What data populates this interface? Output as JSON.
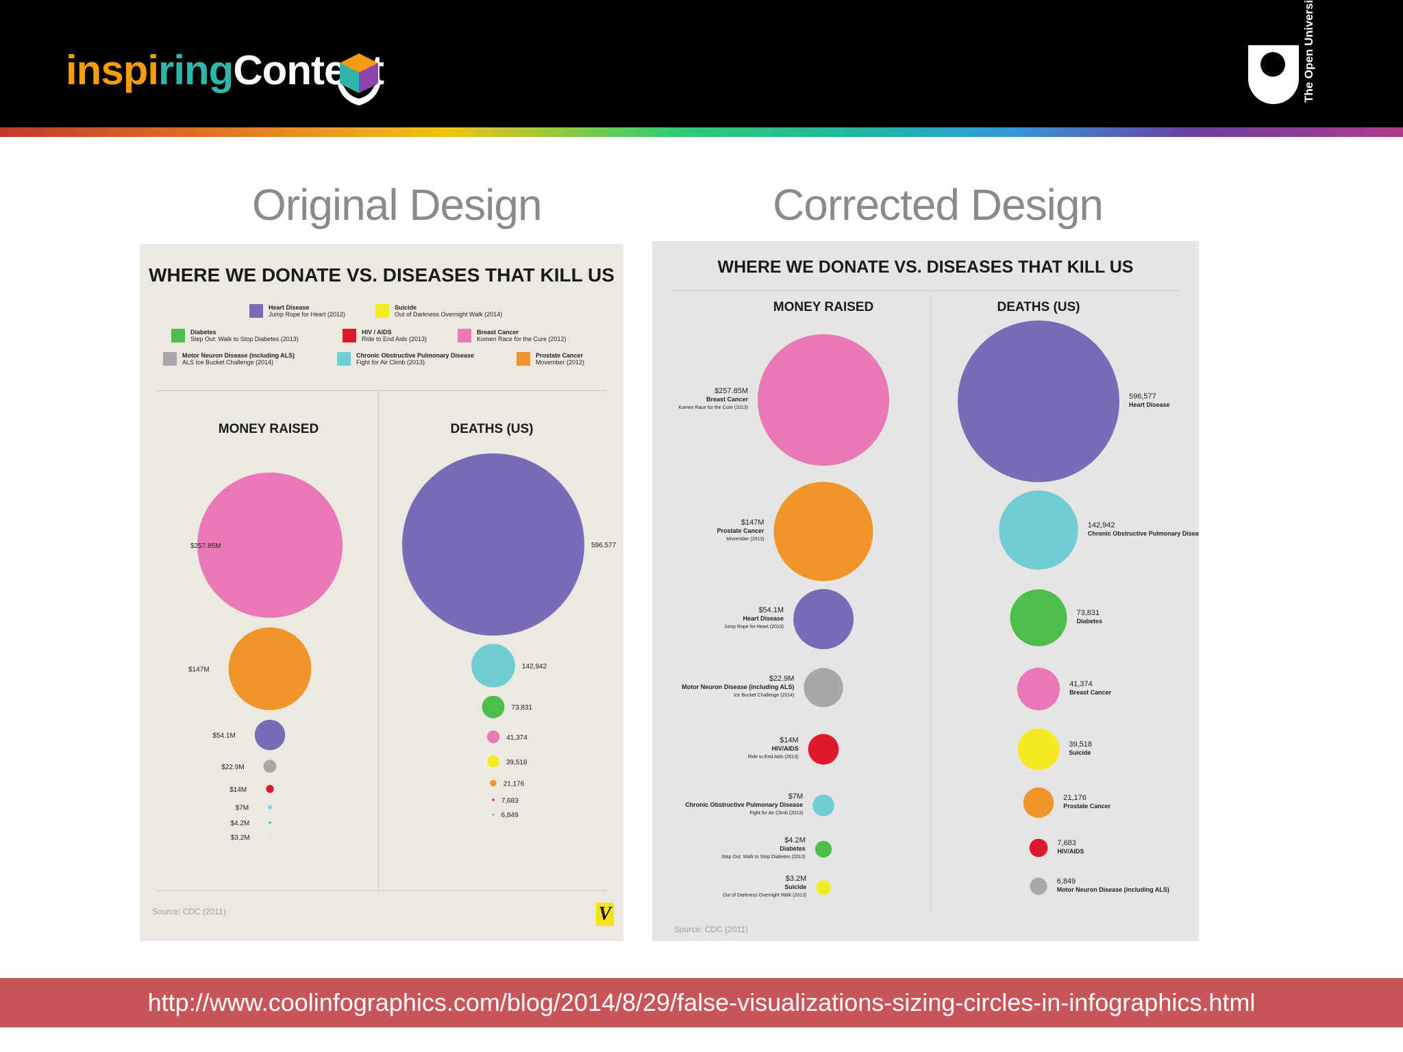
{
  "brand": {
    "part1": "inspi",
    "part2": "ring",
    "part3": "Content"
  },
  "ou_logo_text": "The Open University",
  "headings": {
    "original": "Original Design",
    "corrected": "Corrected Design"
  },
  "footer_url": "http://www.coolinfographics.com/blog/2014/8/29/false-visualizations-sizing-circles-in-infographics.html",
  "colors": {
    "heart": "#7a6bb8",
    "suicide": "#f3ea20",
    "diabetes": "#4bbf4a",
    "hiv": "#e0182e",
    "breast": "#e879b6",
    "als": "#a8a6a6",
    "copd": "#6fcdd4",
    "prostate": "#f0952a"
  },
  "chart_data": [
    {
      "type": "bubble",
      "title": "WHERE WE DONATE VS. DISEASES THAT KILL US",
      "legend": [
        {
          "name": "Heart Disease",
          "campaign": "Jump Rope for Heart (2012)",
          "color": "#7a6bb8"
        },
        {
          "name": "Suicide",
          "campaign": "Out of Darkness Overnight Walk (2014)",
          "color": "#f3ea20"
        },
        {
          "name": "Diabetes",
          "campaign": "Step Out: Walk to Stop Diabetes (2013)",
          "color": "#4bbf4a"
        },
        {
          "name": "HIV / AIDS",
          "campaign": "Ride to End Aids (2013)",
          "color": "#e0182e"
        },
        {
          "name": "Breast Cancer",
          "campaign": "Komen Race for the Cure (2012)",
          "color": "#e879b6"
        },
        {
          "name": "Motor Neuron Disease (including ALS)",
          "campaign": "ALS Ice Bucket Challenge (2014)",
          "color": "#a8a6a6"
        },
        {
          "name": "Chronic Obstructive Pulmonary Disease",
          "campaign": "Fight for Air Climb (2013)",
          "color": "#6fcdd4"
        },
        {
          "name": "Prostate Cancer",
          "campaign": "Movember (2012)",
          "color": "#f0952a"
        }
      ],
      "columns": {
        "money": "MONEY RAISED",
        "deaths": "DEATHS (US)"
      },
      "money": [
        {
          "label": "$257.85M",
          "value": 257.85,
          "color": "#e879b6"
        },
        {
          "label": "$147M",
          "value": 147,
          "color": "#f0952a"
        },
        {
          "label": "$54.1M",
          "value": 54.1,
          "color": "#7a6bb8"
        },
        {
          "label": "$22.9M",
          "value": 22.9,
          "color": "#a8a6a6"
        },
        {
          "label": "$14M",
          "value": 14,
          "color": "#e0182e"
        },
        {
          "label": "$7M",
          "value": 7,
          "color": "#6fcdd4"
        },
        {
          "label": "$4.2M",
          "value": 4.2,
          "color": "#4bbf4a"
        },
        {
          "label": "$3.2M",
          "value": 3.2,
          "color": "#f3ea20"
        }
      ],
      "deaths": [
        {
          "label": "596,577",
          "value": 596577,
          "color": "#7a6bb8"
        },
        {
          "label": "142,942",
          "value": 142942,
          "color": "#6fcdd4"
        },
        {
          "label": "73,831",
          "value": 73831,
          "color": "#4bbf4a"
        },
        {
          "label": "41,374",
          "value": 41374,
          "color": "#e879b6"
        },
        {
          "label": "39,518",
          "value": 39518,
          "color": "#f3ea20"
        },
        {
          "label": "21,176",
          "value": 21176,
          "color": "#f0952a"
        },
        {
          "label": "7,683",
          "value": 7683,
          "color": "#e0182e"
        },
        {
          "label": "6,849",
          "value": 6849,
          "color": "#a8a6a6"
        }
      ],
      "source": "Source: CDC (2011)"
    },
    {
      "type": "bubble",
      "title": "WHERE WE DONATE VS. DISEASES THAT KILL US",
      "columns": {
        "money": "MONEY RAISED",
        "deaths": "DEATHS (US)"
      },
      "money": [
        {
          "label": "$257.85M",
          "name": "Breast Cancer",
          "campaign": "Komen Race for the Cure (2013)",
          "value": 257.85,
          "color": "#e879b6"
        },
        {
          "label": "$147M",
          "name": "Prostate Cancer",
          "campaign": "Movember (2013)",
          "value": 147,
          "color": "#f0952a"
        },
        {
          "label": "$54.1M",
          "name": "Heart Disease",
          "campaign": "Jump Rope for Heart (2013)",
          "value": 54.1,
          "color": "#7a6bb8"
        },
        {
          "label": "$22.9M",
          "name": "Motor Neuron Disease (including ALS)",
          "campaign": "Ice Bucket Challenge (2014)",
          "value": 22.9,
          "color": "#a8a6a6"
        },
        {
          "label": "$14M",
          "name": "HIV/AIDS",
          "campaign": "Ride to End Aids (2013)",
          "value": 14,
          "color": "#e0182e"
        },
        {
          "label": "$7M",
          "name": "Chronic Obstructive Pulmonary Disease",
          "campaign": "Fight for Air Climb (2013)",
          "value": 7,
          "color": "#6fcdd4"
        },
        {
          "label": "$4.2M",
          "name": "Diabetes",
          "campaign": "Step Out: Walk to Stop Diabetes (2013)",
          "value": 4.2,
          "color": "#4bbf4a"
        },
        {
          "label": "$3.2M",
          "name": "Suicide",
          "campaign": "Out of Darkness Overnight Walk (2013)",
          "value": 3.2,
          "color": "#f3ea20"
        }
      ],
      "deaths": [
        {
          "label": "596,577",
          "name": "Heart Disease",
          "value": 596577,
          "color": "#7a6bb8"
        },
        {
          "label": "142,942",
          "name": "Chronic Obstructive Pulmonary Disease",
          "value": 142942,
          "color": "#6fcdd4"
        },
        {
          "label": "73,831",
          "name": "Diabetes",
          "value": 73831,
          "color": "#4bbf4a"
        },
        {
          "label": "41,374",
          "name": "Breast Cancer",
          "value": 41374,
          "color": "#e879b6"
        },
        {
          "label": "39,518",
          "name": "Suicide",
          "value": 39518,
          "color": "#f3ea20"
        },
        {
          "label": "21,176",
          "name": "Prostate Cancer",
          "value": 21176,
          "color": "#f0952a"
        },
        {
          "label": "7,683",
          "name": "HIV/AIDS",
          "value": 7683,
          "color": "#e0182e"
        },
        {
          "label": "6,849",
          "name": "Motor Neuron Disease (including ALS)",
          "value": 6849,
          "color": "#a8a6a6"
        }
      ],
      "source": "Source: CDC (2011)"
    }
  ]
}
